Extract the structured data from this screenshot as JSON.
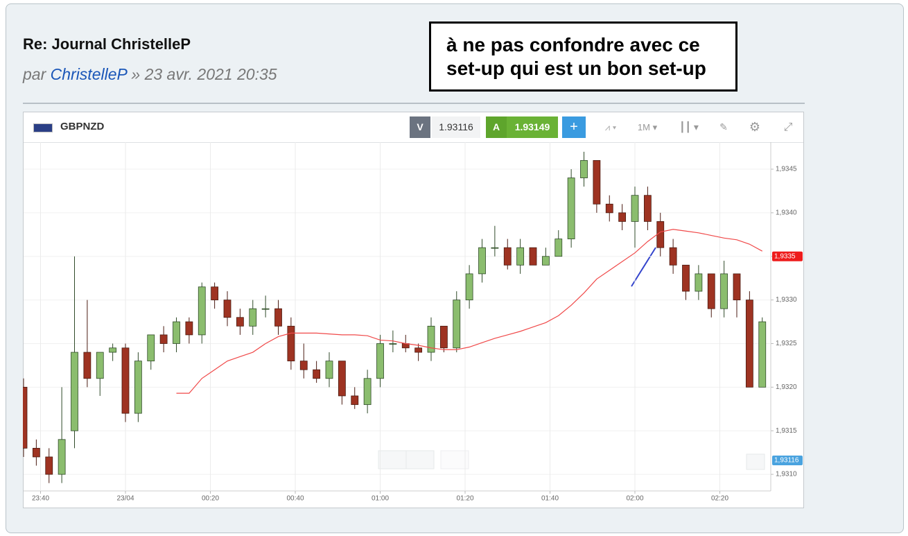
{
  "post": {
    "title": "Re: Journal ChristelleP",
    "by": "par",
    "author": "ChristelleP",
    "sep": "»",
    "date": "23 avr. 2021 20:35"
  },
  "annotation": [
    "à ne pas confondre avec ce",
    "set-up qui est un bon set-up"
  ],
  "toolbar": {
    "symbol": "GBPNZD",
    "sell_label": "V",
    "sell_price": "1.93116",
    "buy_label": "A",
    "buy_price": "1.93149",
    "timeframe": "1M"
  },
  "chart_data": {
    "type": "candlestick",
    "x": [
      "23:36",
      "23:39",
      "23:42",
      "23:45",
      "23:48",
      "23:51",
      "23:54",
      "23:57",
      "00:00",
      "00:03",
      "00:06",
      "00:09",
      "00:12",
      "00:15",
      "00:18",
      "00:21",
      "00:24",
      "00:27",
      "00:30",
      "00:33",
      "00:36",
      "00:39",
      "00:42",
      "00:45",
      "00:48",
      "00:51",
      "00:54",
      "00:57",
      "01:00",
      "01:03",
      "01:06",
      "01:09",
      "01:12",
      "01:15",
      "01:18",
      "01:21",
      "01:24",
      "01:27",
      "01:30",
      "01:33",
      "01:36",
      "01:39",
      "01:42",
      "01:45",
      "01:48",
      "01:51",
      "01:54",
      "01:57",
      "02:00",
      "02:03",
      "02:06",
      "02:09",
      "02:12",
      "02:15",
      "02:18",
      "02:21",
      "02:24",
      "02:27",
      "02:30"
    ],
    "open": [
      1.932,
      1.9313,
      1.9312,
      1.931,
      1.9315,
      1.9324,
      1.9321,
      1.9324,
      1.93245,
      1.9317,
      1.9323,
      1.9326,
      1.9325,
      1.93275,
      1.9326,
      1.93315,
      1.933,
      1.9328,
      1.9327,
      1.9329,
      1.9329,
      1.9327,
      1.9323,
      1.9322,
      1.9321,
      1.9323,
      1.9319,
      1.9318,
      1.9321,
      1.9325,
      1.9325,
      1.93245,
      1.9324,
      1.9327,
      1.93245,
      1.933,
      1.9333,
      1.9336,
      1.9336,
      1.9334,
      1.9336,
      1.9334,
      1.9335,
      1.9337,
      1.9344,
      1.9346,
      1.9341,
      1.934,
      1.9339,
      1.9342,
      1.9339,
      1.9336,
      1.9334,
      1.9331,
      1.9333,
      1.9329,
      1.9333,
      1.933,
      1.932
    ],
    "high": [
      1.9321,
      1.9314,
      1.9313,
      1.932,
      1.9335,
      1.933,
      1.9324,
      1.9325,
      1.9325,
      1.9324,
      1.9326,
      1.9327,
      1.9328,
      1.9328,
      1.9332,
      1.9332,
      1.9331,
      1.9329,
      1.933,
      1.93305,
      1.933,
      1.9328,
      1.9325,
      1.9323,
      1.9324,
      1.9323,
      1.932,
      1.9322,
      1.9326,
      1.93265,
      1.9326,
      1.9325,
      1.9328,
      1.9327,
      1.9331,
      1.9334,
      1.9337,
      1.93385,
      1.9337,
      1.9337,
      1.9336,
      1.9336,
      1.9338,
      1.9345,
      1.9347,
      1.9346,
      1.9342,
      1.9341,
      1.9343,
      1.9343,
      1.934,
      1.9337,
      1.9334,
      1.9334,
      1.9333,
      1.93345,
      1.9333,
      1.9331,
      1.9328
    ],
    "low": [
      1.9312,
      1.9311,
      1.9309,
      1.9309,
      1.9313,
      1.932,
      1.9319,
      1.9323,
      1.9316,
      1.9316,
      1.9322,
      1.9324,
      1.9324,
      1.9325,
      1.9325,
      1.9329,
      1.9327,
      1.9326,
      1.9326,
      1.9328,
      1.9326,
      1.9322,
      1.9321,
      1.93205,
      1.932,
      1.9318,
      1.93175,
      1.9317,
      1.932,
      1.9324,
      1.9324,
      1.9323,
      1.9323,
      1.9324,
      1.9324,
      1.9329,
      1.9332,
      1.9335,
      1.93335,
      1.9333,
      1.9334,
      1.9334,
      1.9335,
      1.9336,
      1.9343,
      1.934,
      1.9339,
      1.9338,
      1.9336,
      1.9338,
      1.9335,
      1.9333,
      1.933,
      1.933,
      1.9328,
      1.9328,
      1.9328,
      1.932,
      1.932
    ],
    "close": [
      1.9313,
      1.9312,
      1.931,
      1.9314,
      1.9324,
      1.9321,
      1.9324,
      1.93245,
      1.9317,
      1.9323,
      1.9326,
      1.9325,
      1.93275,
      1.9326,
      1.93315,
      1.933,
      1.9328,
      1.9327,
      1.9329,
      1.9329,
      1.9327,
      1.9323,
      1.9322,
      1.9321,
      1.9323,
      1.9319,
      1.9318,
      1.9321,
      1.9325,
      1.9325,
      1.93245,
      1.9324,
      1.9327,
      1.93245,
      1.933,
      1.9333,
      1.9336,
      1.9336,
      1.9334,
      1.9336,
      1.9334,
      1.9335,
      1.9337,
      1.9344,
      1.9346,
      1.9341,
      1.934,
      1.9339,
      1.9342,
      1.9339,
      1.9336,
      1.9334,
      1.9331,
      1.9333,
      1.9329,
      1.9333,
      1.933,
      1.932,
      1.93275
    ],
    "up_color": "#8bbd6e",
    "down_color": "#9e3322",
    "overlay": {
      "color": "#f04848",
      "values": [
        null,
        null,
        null,
        null,
        null,
        null,
        null,
        null,
        null,
        null,
        null,
        null,
        1.93193,
        1.93193,
        1.9321,
        1.9322,
        1.9323,
        1.93235,
        1.9324,
        1.9325,
        1.93258,
        1.93262,
        1.93262,
        1.93262,
        1.93261,
        1.9326,
        1.9326,
        1.93259,
        1.93254,
        1.93253,
        1.9325,
        1.93248,
        1.93245,
        1.93243,
        1.93243,
        1.93246,
        1.93251,
        1.93256,
        1.9326,
        1.93264,
        1.93269,
        1.93274,
        1.93282,
        1.93294,
        1.93308,
        1.93324,
        1.93334,
        1.93344,
        1.93354,
        1.93367,
        1.93378,
        1.93381,
        1.93379,
        1.93377,
        1.93374,
        1.93371,
        1.93369,
        1.93364,
        1.93356
      ]
    },
    "xlim": [
      "23:36",
      "02:32"
    ],
    "xticks": [
      "23:40",
      {
        "value": "00:00",
        "label": "23/04"
      },
      "00:20",
      "00:40",
      "01:00",
      "01:20",
      "01:40",
      "02:00",
      "02:20"
    ],
    "ylim": [
      1.93081,
      1.93481
    ],
    "yticks": [
      {
        "value": 1.931,
        "label": "1,9310"
      },
      {
        "value": 1.9315,
        "label": "1,9315"
      },
      {
        "value": 1.932,
        "label": "1,9320"
      },
      {
        "value": 1.9325,
        "label": "1,9325"
      },
      {
        "value": 1.933,
        "label": "1,9330"
      },
      {
        "value": 1.9335,
        "label": "1,9335"
      },
      {
        "value": 1.934,
        "label": "1,9340"
      },
      {
        "value": 1.9345,
        "label": "1,9345"
      }
    ],
    "price_tags": [
      {
        "value": 1.9335,
        "label": "1,9335",
        "color": "#ee1c1c"
      },
      {
        "value": 1.93116,
        "label": "1,93116",
        "color": "#4aa3df"
      }
    ],
    "grid": true
  }
}
